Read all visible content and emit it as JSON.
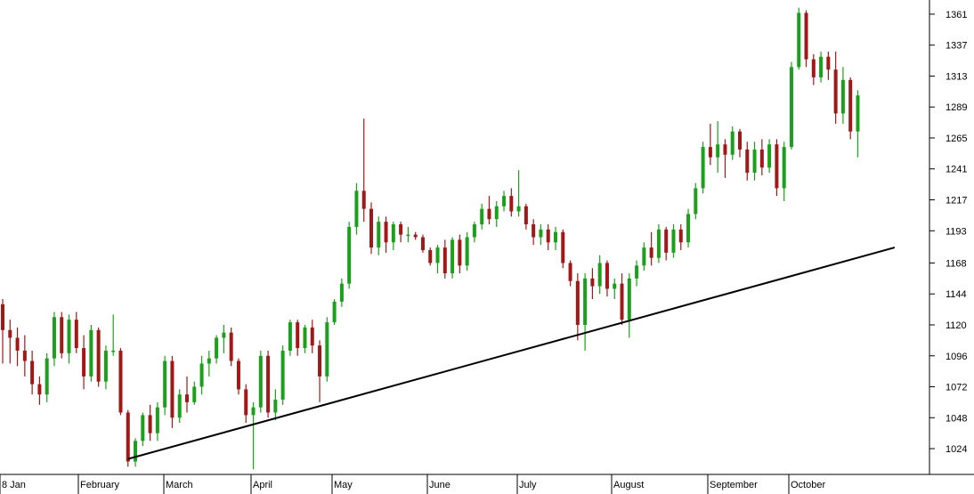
{
  "chart_data": {
    "type": "candlestick",
    "title": "",
    "xlabel": "",
    "ylabel": "",
    "ylim": [
      1004,
      1372
    ],
    "y_ticks": [
      1024,
      1048,
      1072,
      1096,
      1120,
      1144,
      1168,
      1193,
      1217,
      1241,
      1265,
      1289,
      1313,
      1337,
      1361
    ],
    "grid": false,
    "legend": "none",
    "months": [
      "8 Jan",
      "February",
      "March",
      "April",
      "May",
      "June",
      "July",
      "August",
      "September",
      "October"
    ],
    "colors": {
      "up": "#1aa01a",
      "down": "#a01818",
      "trendline": "#000000",
      "axis": "#000000"
    },
    "series": [
      {
        "values": [
          [
            1136,
            1140,
            1090,
            1116
          ],
          [
            1116,
            1124,
            1090,
            1110
          ],
          [
            1110,
            1118,
            1088,
            1100
          ],
          [
            1100,
            1112,
            1080,
            1092
          ],
          [
            1092,
            1100,
            1066,
            1074
          ],
          [
            1074,
            1080,
            1058,
            1066
          ],
          [
            1066,
            1098,
            1060,
            1094
          ],
          [
            1094,
            1130,
            1088,
            1126
          ],
          [
            1126,
            1130,
            1094,
            1098
          ],
          [
            1098,
            1128,
            1090,
            1124
          ],
          [
            1124,
            1130,
            1098,
            1102
          ],
          [
            1102,
            1112,
            1070,
            1080
          ],
          [
            1080,
            1120,
            1076,
            1116
          ],
          [
            1116,
            1118,
            1072,
            1076
          ],
          [
            1076,
            1104,
            1070,
            1100
          ],
          [
            1100,
            1128,
            1096,
            1100
          ],
          [
            1100,
            1102,
            1050,
            1052
          ],
          [
            1052,
            1054,
            1010,
            1014
          ],
          [
            1014,
            1032,
            1010,
            1030
          ],
          [
            1030,
            1052,
            1026,
            1050
          ],
          [
            1050,
            1058,
            1030,
            1036
          ],
          [
            1036,
            1060,
            1030,
            1056
          ],
          [
            1056,
            1096,
            1050,
            1092
          ],
          [
            1092,
            1096,
            1040,
            1048
          ],
          [
            1048,
            1070,
            1044,
            1066
          ],
          [
            1066,
            1080,
            1052,
            1060
          ],
          [
            1060,
            1076,
            1058,
            1072
          ],
          [
            1072,
            1096,
            1066,
            1090
          ],
          [
            1090,
            1100,
            1080,
            1094
          ],
          [
            1094,
            1112,
            1090,
            1110
          ],
          [
            1110,
            1120,
            1098,
            1114
          ],
          [
            1114,
            1118,
            1088,
            1092
          ],
          [
            1092,
            1094,
            1066,
            1070
          ],
          [
            1070,
            1074,
            1044,
            1050
          ],
          [
            1050,
            1060,
            1008,
            1056
          ],
          [
            1056,
            1100,
            1052,
            1096
          ],
          [
            1096,
            1100,
            1048,
            1052
          ],
          [
            1052,
            1070,
            1046,
            1062
          ],
          [
            1062,
            1104,
            1058,
            1100
          ],
          [
            1100,
            1124,
            1096,
            1122
          ],
          [
            1122,
            1124,
            1096,
            1102
          ],
          [
            1102,
            1120,
            1098,
            1118
          ],
          [
            1118,
            1124,
            1098,
            1104
          ],
          [
            1104,
            1108,
            1060,
            1080
          ],
          [
            1080,
            1126,
            1076,
            1122
          ],
          [
            1122,
            1140,
            1120,
            1138
          ],
          [
            1138,
            1156,
            1134,
            1152
          ],
          [
            1152,
            1200,
            1148,
            1196
          ],
          [
            1196,
            1230,
            1190,
            1224
          ],
          [
            1224,
            1280,
            1200,
            1210
          ],
          [
            1210,
            1215,
            1175,
            1180
          ],
          [
            1180,
            1204,
            1174,
            1200
          ],
          [
            1200,
            1204,
            1176,
            1184
          ],
          [
            1184,
            1200,
            1178,
            1198
          ],
          [
            1198,
            1200,
            1184,
            1190
          ],
          [
            1190,
            1196,
            1184,
            1190
          ],
          [
            1190,
            1192,
            1186,
            1188
          ],
          [
            1188,
            1190,
            1176,
            1178
          ],
          [
            1178,
            1180,
            1166,
            1168
          ],
          [
            1168,
            1182,
            1160,
            1180
          ],
          [
            1180,
            1186,
            1156,
            1160
          ],
          [
            1160,
            1188,
            1156,
            1186
          ],
          [
            1186,
            1190,
            1160,
            1166
          ],
          [
            1166,
            1192,
            1162,
            1188
          ],
          [
            1188,
            1200,
            1184,
            1198
          ],
          [
            1198,
            1214,
            1194,
            1210
          ],
          [
            1210,
            1220,
            1198,
            1202
          ],
          [
            1202,
            1216,
            1196,
            1212
          ],
          [
            1212,
            1224,
            1208,
            1220
          ],
          [
            1220,
            1226,
            1204,
            1208
          ],
          [
            1208,
            1240,
            1204,
            1212
          ],
          [
            1212,
            1214,
            1194,
            1198
          ],
          [
            1198,
            1202,
            1182,
            1188
          ],
          [
            1188,
            1198,
            1182,
            1194
          ],
          [
            1194,
            1198,
            1178,
            1184
          ],
          [
            1184,
            1196,
            1178,
            1192
          ],
          [
            1192,
            1194,
            1164,
            1168
          ],
          [
            1168,
            1170,
            1150,
            1154
          ],
          [
            1154,
            1160,
            1108,
            1120
          ],
          [
            1120,
            1160,
            1100,
            1156
          ],
          [
            1156,
            1164,
            1140,
            1150
          ],
          [
            1150,
            1174,
            1144,
            1168
          ],
          [
            1168,
            1170,
            1142,
            1148
          ],
          [
            1148,
            1156,
            1140,
            1152
          ],
          [
            1152,
            1160,
            1120,
            1124
          ],
          [
            1124,
            1160,
            1110,
            1156
          ],
          [
            1156,
            1170,
            1150,
            1166
          ],
          [
            1166,
            1184,
            1162,
            1180
          ],
          [
            1180,
            1192,
            1166,
            1172
          ],
          [
            1172,
            1198,
            1168,
            1194
          ],
          [
            1194,
            1196,
            1170,
            1176
          ],
          [
            1176,
            1198,
            1172,
            1194
          ],
          [
            1194,
            1198,
            1178,
            1184
          ],
          [
            1184,
            1210,
            1180,
            1206
          ],
          [
            1206,
            1230,
            1202,
            1226
          ],
          [
            1226,
            1262,
            1222,
            1258
          ],
          [
            1258,
            1276,
            1244,
            1250
          ],
          [
            1250,
            1278,
            1238,
            1260
          ],
          [
            1260,
            1264,
            1234,
            1252
          ],
          [
            1252,
            1274,
            1248,
            1270
          ],
          [
            1270,
            1272,
            1250,
            1256
          ],
          [
            1256,
            1262,
            1232,
            1238
          ],
          [
            1238,
            1262,
            1232,
            1256
          ],
          [
            1256,
            1264,
            1236,
            1242
          ],
          [
            1242,
            1264,
            1238,
            1260
          ],
          [
            1260,
            1264,
            1220,
            1226
          ],
          [
            1226,
            1262,
            1216,
            1258
          ],
          [
            1258,
            1324,
            1256,
            1320
          ],
          [
            1320,
            1366,
            1318,
            1362
          ],
          [
            1362,
            1364,
            1320,
            1326
          ],
          [
            1326,
            1330,
            1306,
            1312
          ],
          [
            1312,
            1332,
            1308,
            1328
          ],
          [
            1328,
            1332,
            1310,
            1318
          ],
          [
            1318,
            1332,
            1276,
            1284
          ],
          [
            1284,
            1320,
            1276,
            1310
          ],
          [
            1310,
            1312,
            1264,
            1270
          ],
          [
            1270,
            1302,
            1250,
            1298
          ]
        ]
      }
    ],
    "trendline": {
      "start": [
        17,
        1016
      ],
      "end": [
        121,
        1180
      ]
    }
  }
}
